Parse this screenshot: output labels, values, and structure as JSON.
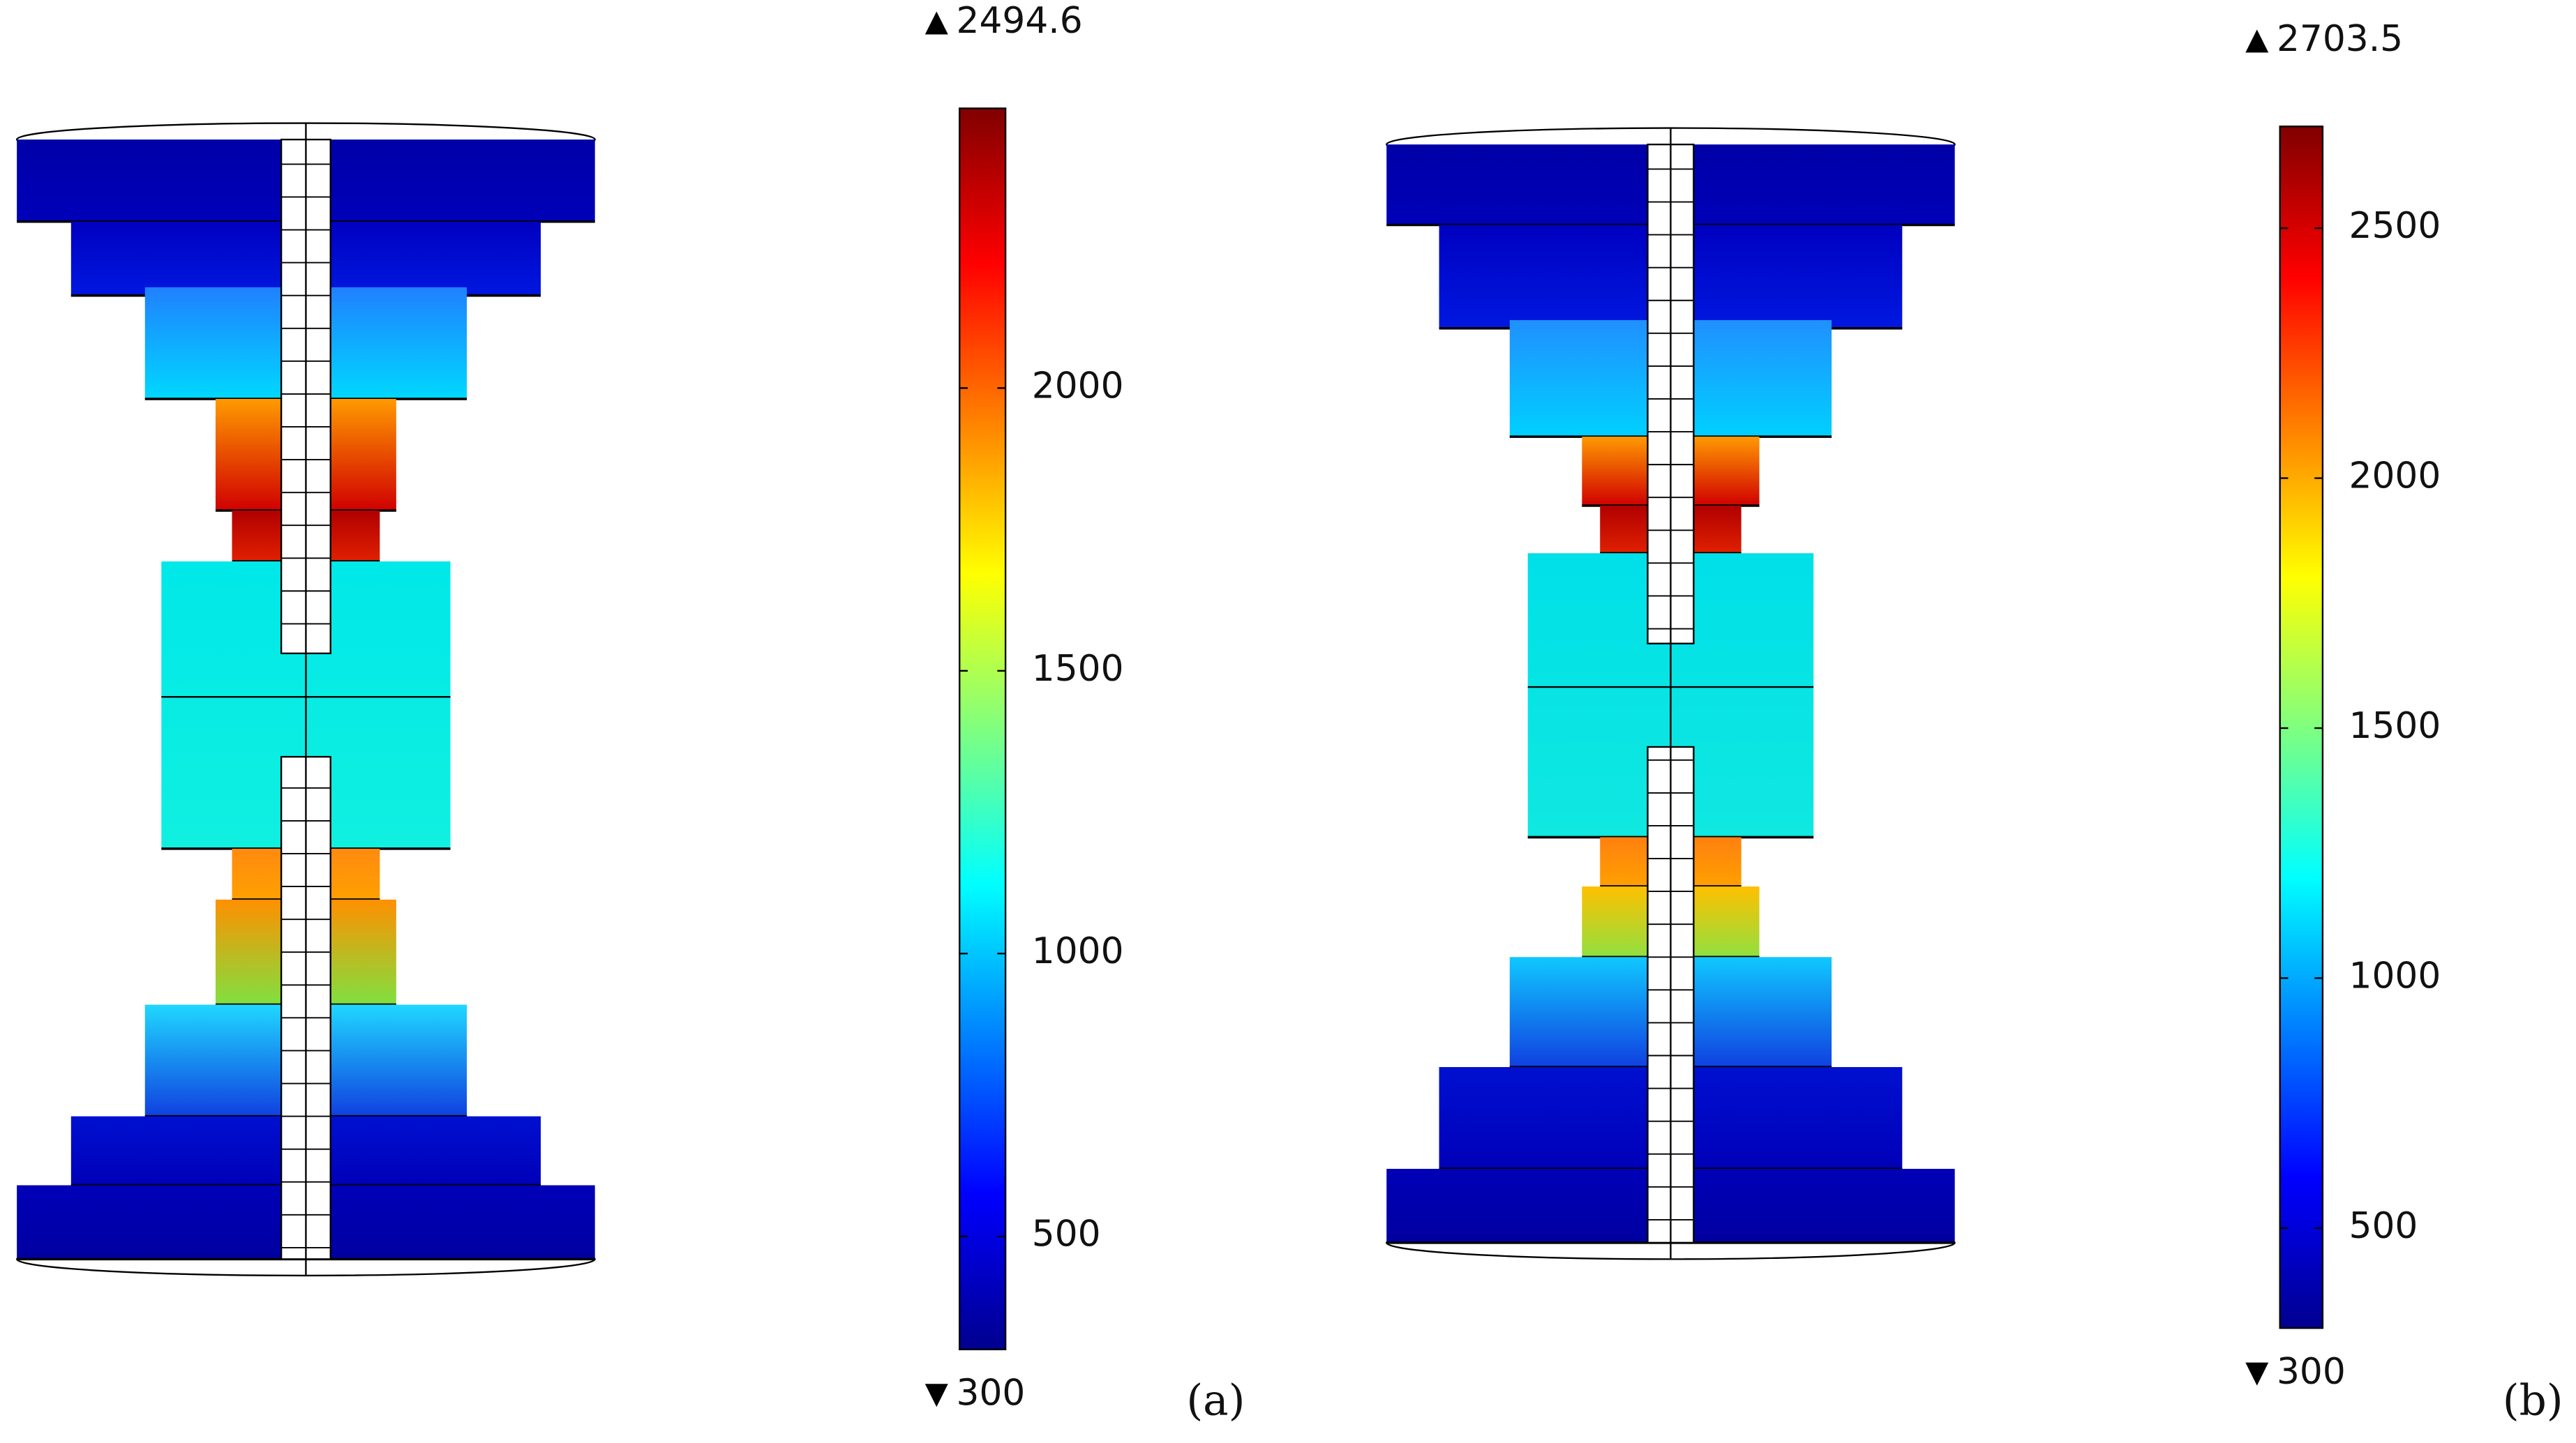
{
  "panels": [
    {
      "label": "(a)",
      "colorbar": {
        "min": 300,
        "max": 2494.6,
        "ticks": [
          500,
          1000,
          1500,
          2000
        ]
      }
    },
    {
      "label": "(b)",
      "colorbar": {
        "min": 300,
        "max": 2703.5,
        "ticks": [
          500,
          1000,
          1500,
          2000,
          2500
        ]
      }
    }
  ]
}
